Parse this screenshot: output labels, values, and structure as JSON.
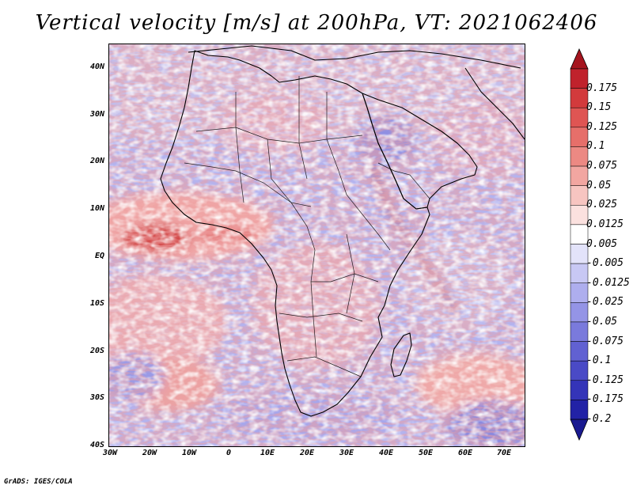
{
  "title": "Vertical velocity [m/s] at 200hPa, VT: 2021062406",
  "credit": "GrADS: IGES/COLA",
  "map": {
    "lat_ticks": [
      "40N",
      "30N",
      "20N",
      "10N",
      "EQ",
      "10S",
      "20S",
      "30S",
      "40S"
    ],
    "lon_ticks": [
      "30W",
      "20W",
      "10W",
      "0",
      "10E",
      "20E",
      "30E",
      "40E",
      "50E",
      "60E",
      "70E"
    ],
    "lat_range": [
      -40,
      44
    ],
    "lon_range": [
      -30,
      75
    ]
  },
  "colorbar": {
    "labels": [
      "0.175",
      "0.15",
      "0.125",
      "0.1",
      "0.075",
      "0.05",
      "0.025",
      "0.0125",
      "0.005",
      "-0.005",
      "-0.0125",
      "-0.025",
      "-0.05",
      "-0.075",
      "-0.1",
      "-0.125",
      "-0.175",
      "-0.2"
    ],
    "colors": [
      "#c0222c",
      "#d23a3c",
      "#df5553",
      "#e66f6a",
      "#ec8983",
      "#f2a6a1",
      "#f7c5c1",
      "#fbe1df",
      "#ffffff",
      "#e3e3fa",
      "#c8c8f4",
      "#aeaeee",
      "#9494e6",
      "#7a7adc",
      "#6161d2",
      "#4a4ac6",
      "#3434b8",
      "#2222a6"
    ],
    "top_arrow_color": "#a5141e",
    "bottom_arrow_color": "#1a1a90"
  }
}
